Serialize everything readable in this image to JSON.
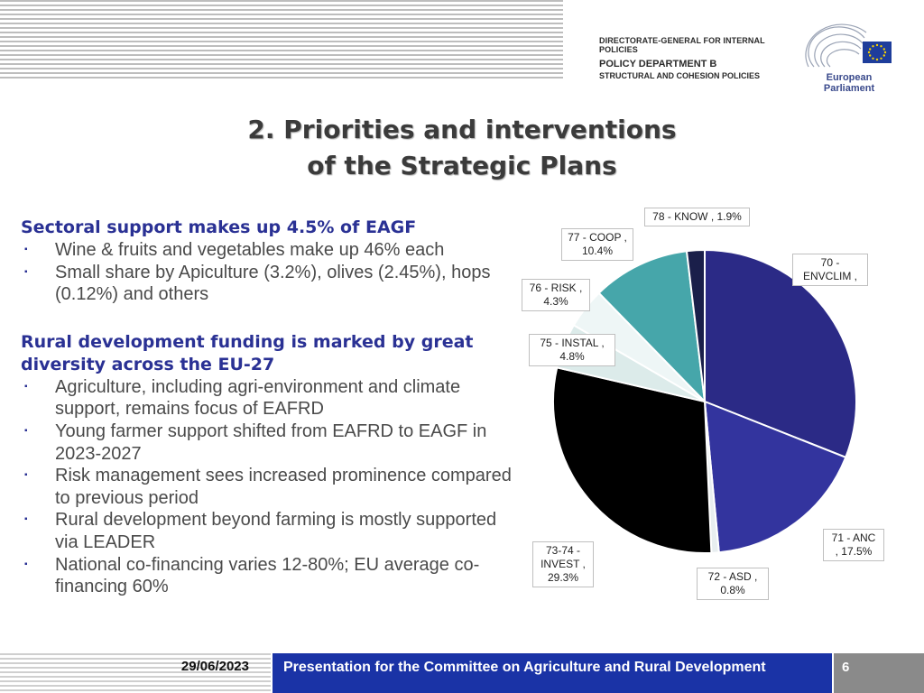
{
  "header": {
    "line1": "DIRECTORATE-GENERAL FOR INTERNAL POLICIES",
    "line2": "POLICY DEPARTMENT B",
    "line3": "STRUCTURAL AND COHESION POLICIES",
    "logo_name": "European Parliament",
    "colors": {
      "eu_blue": "#1e3d9b",
      "eu_star": "#f5d000"
    }
  },
  "title": {
    "line1": "2. Priorities and interventions",
    "line2": "of the Strategic Plans"
  },
  "sections": [
    {
      "heading": "Sectoral support makes up 4.5% of EAGF",
      "bullets": [
        "Wine & fruits and vegetables make up 46% each",
        "Small share by Apiculture (3.2%), olives (2.45%), hops (0.12%) and others"
      ]
    },
    {
      "heading": "Rural development funding is marked by great diversity across the EU-27",
      "bullets": [
        "Agriculture, including agri-environment and climate support, remains focus of EAFRD",
        "Young farmer support shifted from EAFRD to EAGF in 2023-2027",
        "Risk management sees increased prominence compared to previous period",
        "Rural development beyond farming is mostly supported via LEADER",
        "National co-financing varies 12-80%; EU average co-financing 60%"
      ]
    }
  ],
  "bullet_glyph": "▪",
  "chart_data": {
    "type": "pie",
    "title": "",
    "slices": [
      {
        "id": "envclim",
        "label_line1": "70 -",
        "label_line2": "ENVCLIM ,",
        "value": 31.0,
        "color": "#2b2a86"
      },
      {
        "id": "anc",
        "label_line1": "71 - ANC",
        "label_line2": ", 17.5%",
        "value": 17.5,
        "color": "#33349e"
      },
      {
        "id": "asd",
        "label_line1": "72 - ASD ,",
        "label_line2": "0.8%",
        "value": 0.8,
        "color": "#e8eef0"
      },
      {
        "id": "invest",
        "label_line1": "73-74 -",
        "label_line2": "INVEST ,",
        "label_line3": "29.3%",
        "value": 29.3,
        "color": "#000000"
      },
      {
        "id": "instal",
        "label_line1": "75 - INSTAL ,",
        "label_line2": "4.8%",
        "value": 4.8,
        "color": "#dcebea"
      },
      {
        "id": "risk",
        "label_line1": "76 - RISK ,",
        "label_line2": "4.3%",
        "value": 4.3,
        "color": "#eef6f6"
      },
      {
        "id": "coop",
        "label_line1": "77 - COOP ,",
        "label_line2": "10.4%",
        "value": 10.4,
        "color": "#46a6aa"
      },
      {
        "id": "know",
        "label_line1": "78 - KNOW , 1.9%",
        "value": 1.9,
        "color": "#1a1f4a"
      }
    ]
  },
  "footer": {
    "date": "29/06/2023",
    "text": "Presentation for the Committee on Agriculture and Rural Development",
    "page": "6",
    "colors": {
      "bar": "#1a33a6",
      "page_box": "#8a8a8a"
    }
  }
}
